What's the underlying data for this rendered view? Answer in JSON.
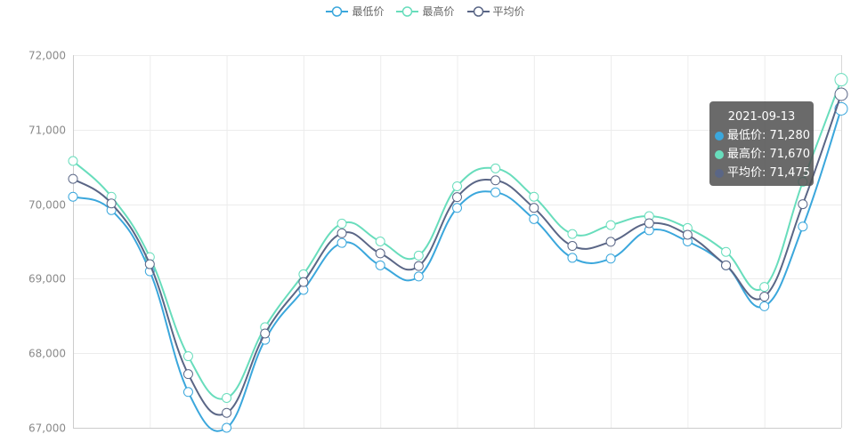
{
  "legend": [
    {
      "name": "最低价",
      "color": "#3ba7dc"
    },
    {
      "name": "最高价",
      "color": "#68ddbc"
    },
    {
      "name": "平均价",
      "color": "#5a6686"
    }
  ],
  "tooltip": {
    "date": "2021-09-13",
    "rows": [
      {
        "label": "最低价: 71,280",
        "color": "#3ba7dc"
      },
      {
        "label": "最高价: 71,670",
        "color": "#68ddbc"
      },
      {
        "label": "平均价: 71,475",
        "color": "#5a6686"
      }
    ]
  },
  "chart_data": {
    "type": "line",
    "ylim": [
      67000,
      72000
    ],
    "yticks": [
      "67,000",
      "68,000",
      "69,000",
      "70,000",
      "71,000",
      "72,000"
    ],
    "ytick_values": [
      67000,
      68000,
      69000,
      70000,
      71000,
      72000
    ],
    "grid": true,
    "legend_position": "top-center",
    "x_count": 21,
    "series": [
      {
        "name": "最低价",
        "color": "#3ba7dc",
        "values": [
          70100,
          69920,
          69100,
          67480,
          67000,
          68180,
          68850,
          69480,
          69180,
          69030,
          69950,
          70160,
          69800,
          69280,
          69270,
          69650,
          69500,
          69180,
          68630,
          69700,
          71280
        ]
      },
      {
        "name": "最高价",
        "color": "#68ddbc",
        "values": [
          70580,
          70100,
          69290,
          67960,
          67400,
          68350,
          69060,
          69740,
          69500,
          69310,
          70240,
          70480,
          70100,
          69600,
          69720,
          69840,
          69680,
          69360,
          68890,
          70300,
          71670
        ]
      },
      {
        "name": "平均价",
        "color": "#5a6686",
        "values": [
          70340,
          70010,
          69195,
          67720,
          67200,
          68265,
          68955,
          69610,
          69340,
          69170,
          70095,
          70320,
          69950,
          69440,
          69495,
          69745,
          69590,
          69180,
          68760,
          70000,
          71475
        ]
      }
    ]
  }
}
